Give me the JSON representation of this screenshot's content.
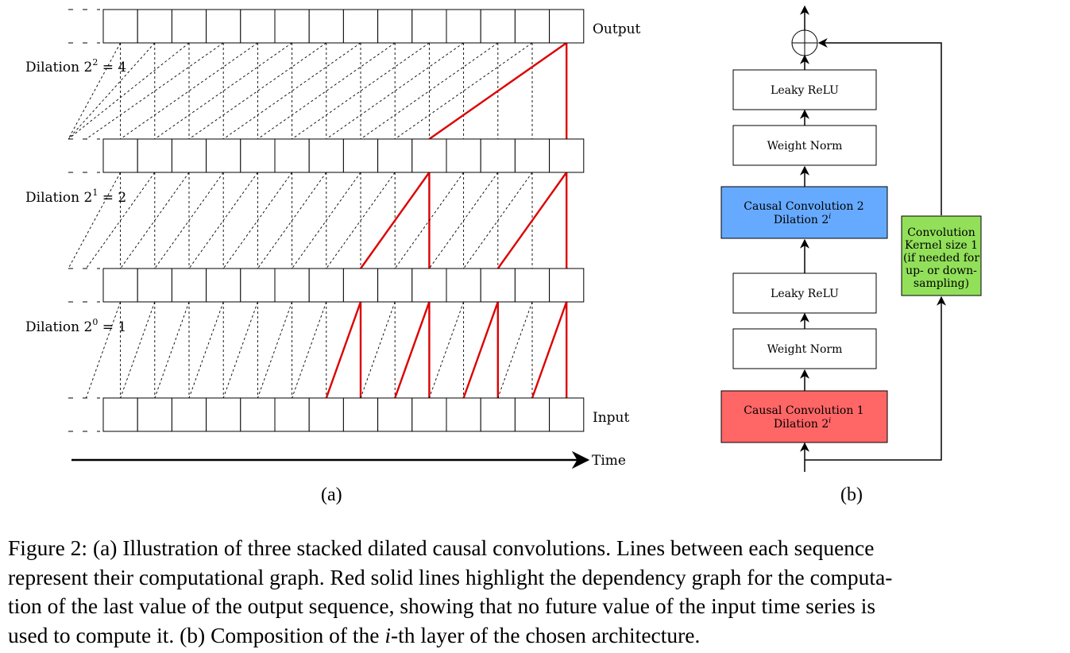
{
  "panel_a": {
    "output_label": "Output",
    "input_label": "Input",
    "time_label": "Time",
    "dilation_labels": [
      {
        "prefix": "Dilation 2",
        "exp": "2",
        "suffix": " = 4"
      },
      {
        "prefix": "Dilation 2",
        "exp": "1",
        "suffix": " = 2"
      },
      {
        "prefix": "Dilation 2",
        "exp": "0",
        "suffix": " = 1"
      }
    ],
    "subfig_label": "(a)"
  },
  "panel_b": {
    "blocks": {
      "leaky_relu_top": "Leaky ReLU",
      "weight_norm_top": "Weight Norm",
      "causal_conv_2_line1": "Causal Convolution 2",
      "causal_conv_2_line2": "Dilation 2",
      "leaky_relu_bottom": "Leaky ReLU",
      "weight_norm_bottom": "Weight Norm",
      "causal_conv_1_line1": "Causal Convolution 1",
      "causal_conv_1_line2": "Dilation 2",
      "dilation_exp": "i"
    },
    "residual_box": [
      "Convolution",
      "Kernel size 1",
      "(if needed for",
      "up- or down-",
      "sampling)"
    ],
    "subfig_label": "(b)",
    "colors": {
      "causal_conv_2": "#66aaff",
      "causal_conv_1": "#ff6666",
      "residual": "#92e05a",
      "dependency": "#dd0000"
    }
  },
  "caption": {
    "line1": "Figure 2: (a) Illustration of three stacked dilated causal convolutions. Lines between each sequence",
    "line2": "represent their computational graph. Red solid lines highlight the dependency graph for the computa-",
    "line3": "tion of the last value of the output sequence, showing that no future value of the input time series is",
    "line4_pre": "used to compute it. (b) Composition of the ",
    "line4_var": "i",
    "line4_post": "-th layer of the chosen architecture."
  }
}
